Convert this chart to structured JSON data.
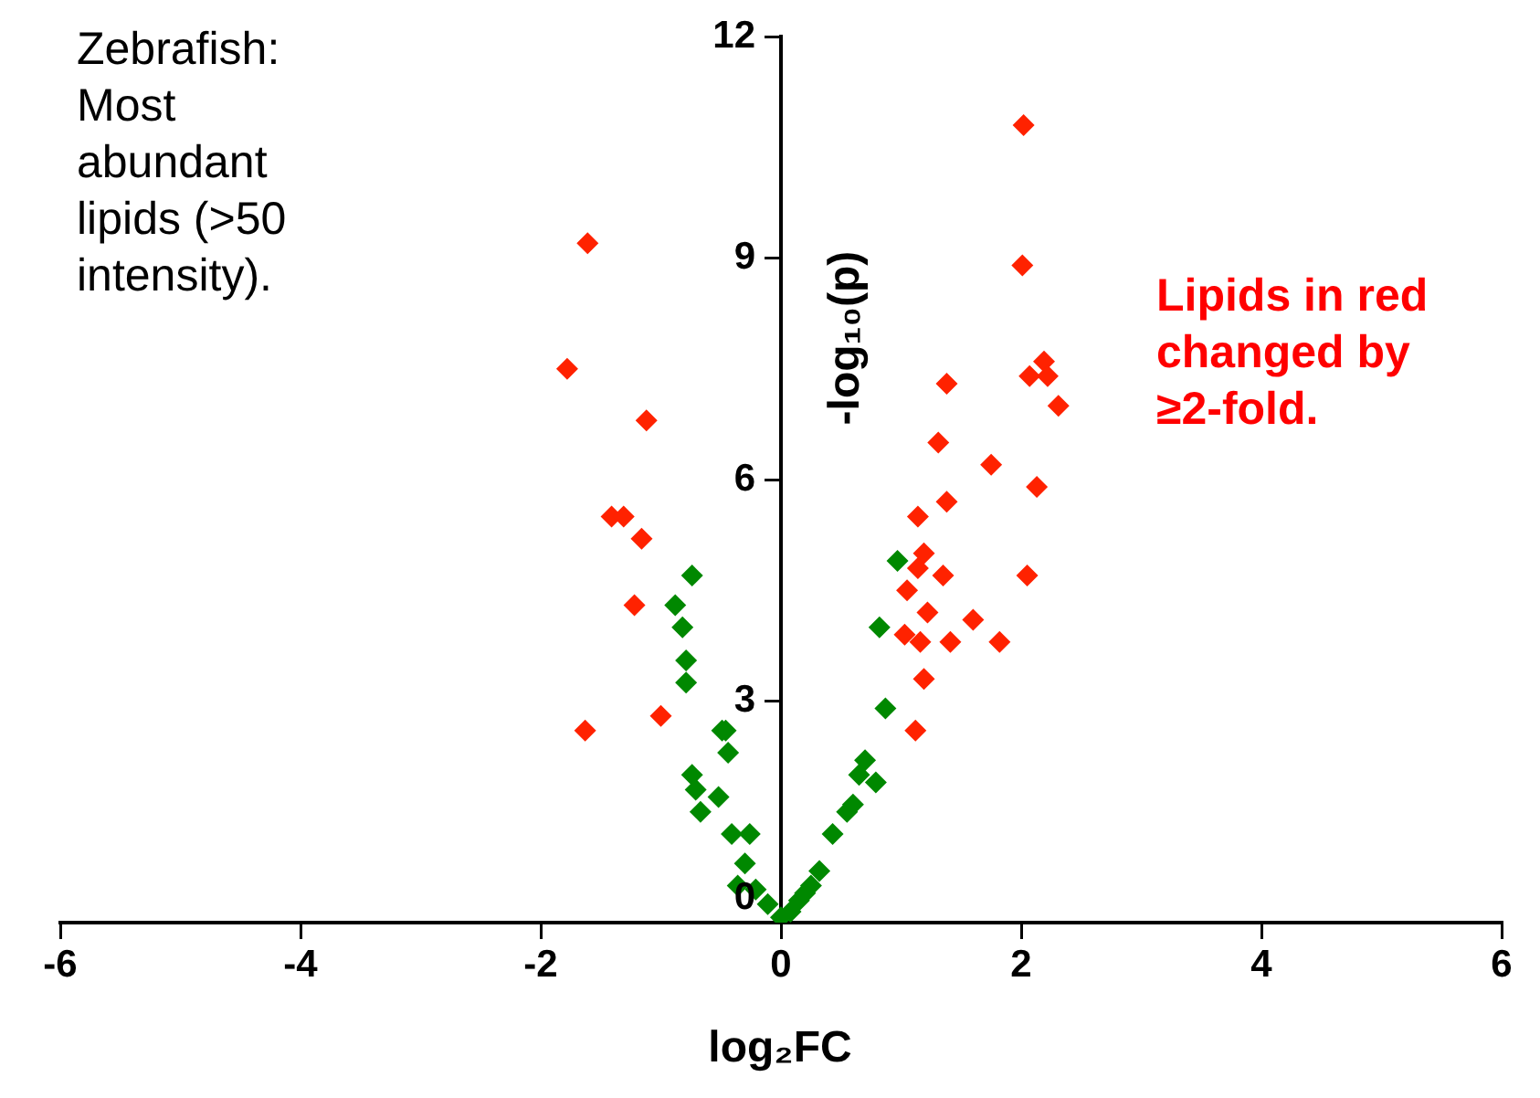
{
  "chart_data": {
    "type": "scatter",
    "xlabel": "log₂FC",
    "ylabel": "-log₁₀(p)",
    "annotations": [
      "Zebrafish: Most abundant lipids (>50 intensity).",
      "Lipids in red changed by ≥2-fold."
    ],
    "xlim": [
      -6,
      6
    ],
    "xticks": [
      -6,
      -4,
      -2,
      0,
      2,
      4,
      6
    ],
    "ylim": [
      0,
      12
    ],
    "yticks": [
      0,
      3,
      6,
      9,
      12
    ],
    "grid": false,
    "legend": false,
    "marker": "diamond",
    "series": [
      {
        "color": "#ff2200",
        "x": [
          -1.61,
          -1.78,
          -1.12,
          -1.41,
          -1.31,
          -1.16,
          -1.22,
          -1.0,
          -1.63,
          2.02,
          2.01,
          2.19,
          2.07,
          2.22,
          2.31,
          1.38,
          1.31,
          1.75,
          1.38,
          2.13,
          1.14,
          1.19,
          1.14,
          1.35,
          2.05,
          1.05,
          1.22,
          1.6,
          1.03,
          1.16,
          1.41,
          1.82,
          1.19,
          1.12
        ],
        "values": [
          9.2,
          7.5,
          6.8,
          5.5,
          5.5,
          5.2,
          4.3,
          2.8,
          2.6,
          10.8,
          8.9,
          7.6,
          7.4,
          7.4,
          7.0,
          7.3,
          6.5,
          6.2,
          5.7,
          5.9,
          5.5,
          5.0,
          4.8,
          4.7,
          4.7,
          4.5,
          4.2,
          4.1,
          3.9,
          3.8,
          3.8,
          3.8,
          3.3,
          2.6
        ]
      },
      {
        "color": "#008800",
        "x": [
          0.97,
          0.82,
          0.87,
          0.7,
          0.79,
          0.55,
          0.43,
          0.32,
          0.25,
          0.15,
          0.08,
          0.6,
          0.65,
          -0.74,
          -0.88,
          -0.82,
          -0.79,
          -0.79,
          -0.46,
          -0.49,
          -0.44,
          -0.74,
          -0.52,
          -0.71,
          -0.67,
          -0.41,
          -0.26,
          -0.3,
          -0.36,
          -0.21,
          -0.11,
          0.0,
          0.2
        ],
        "values": [
          4.9,
          4.0,
          2.9,
          2.2,
          1.9,
          1.5,
          1.2,
          0.7,
          0.5,
          0.3,
          0.15,
          1.6,
          2.0,
          4.7,
          4.3,
          4.0,
          3.55,
          3.25,
          2.6,
          2.6,
          2.3,
          2.0,
          1.7,
          1.8,
          1.5,
          1.2,
          1.2,
          0.8,
          0.5,
          0.45,
          0.25,
          0.07,
          0.4
        ]
      }
    ]
  }
}
